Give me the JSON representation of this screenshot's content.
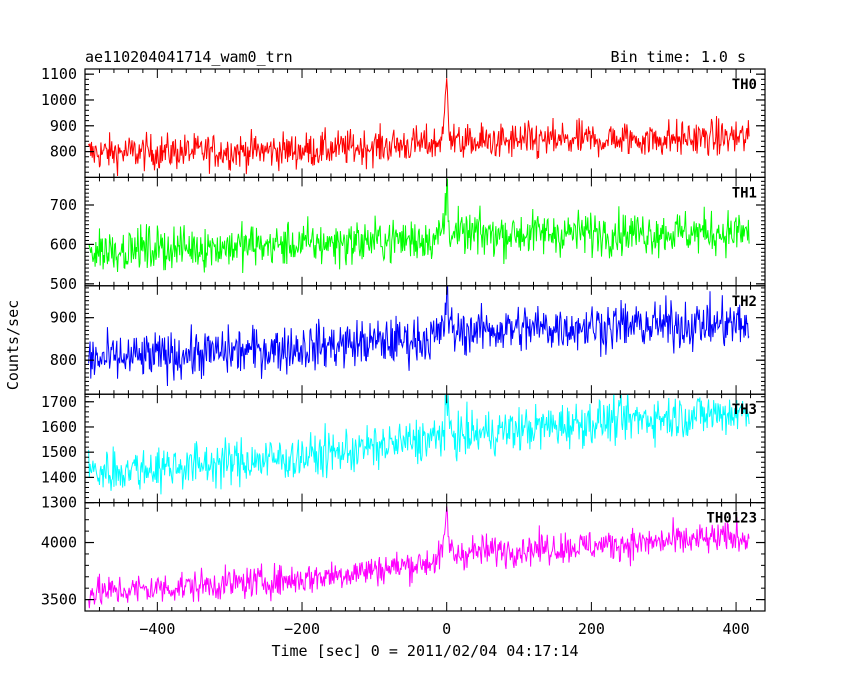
{
  "chart_data": {
    "type": "line",
    "title": "ae110204041714_wam0_trn",
    "subtitle": "Bin time: 1.0 s",
    "xlabel": "Time [sec] 0 = 2011/02/04 04:17:14",
    "ylabel": "Counts/sec",
    "xlim": [
      -500,
      440
    ],
    "x_ticks": [
      "−400",
      "−200",
      "0",
      "200",
      "400"
    ],
    "x_tick_values": [
      -400,
      -200,
      0,
      200,
      400
    ],
    "x_range": [
      -495,
      418
    ],
    "grid": false,
    "panels": [
      {
        "name": "TH0",
        "color": "#ff0000",
        "ylim": [
          700,
          1120
        ],
        "yticks": [
          800,
          900,
          1000,
          1100
        ],
        "ytick_labels": [
          "800",
          "900",
          "1000",
          "1100"
        ],
        "trend": [
          [
            -495,
            795
          ],
          [
            -200,
            805
          ],
          [
            -30,
            830
          ],
          [
            30,
            835
          ],
          [
            200,
            845
          ],
          [
            418,
            855
          ]
        ],
        "noise": 35,
        "peak": 1110
      },
      {
        "name": "TH1",
        "color": "#00ff00",
        "ylim": [
          495,
          770
        ],
        "yticks": [
          500,
          600,
          700
        ],
        "ytick_labels": [
          "500",
          "600",
          "700"
        ],
        "trend": [
          [
            -495,
            585
          ],
          [
            -200,
            600
          ],
          [
            -30,
            615
          ],
          [
            30,
            625
          ],
          [
            200,
            630
          ],
          [
            418,
            630
          ]
        ],
        "noise": 28,
        "peak": 765
      },
      {
        "name": "TH2",
        "color": "#0000ff",
        "ylim": [
          720,
          975
        ],
        "yticks": [
          800,
          900
        ],
        "ytick_labels": [
          "800",
          "900"
        ],
        "trend": [
          [
            -495,
            800
          ],
          [
            -200,
            830
          ],
          [
            -30,
            850
          ],
          [
            30,
            870
          ],
          [
            200,
            880
          ],
          [
            418,
            885
          ]
        ],
        "noise": 28,
        "peak": 970
      },
      {
        "name": "TH3",
        "color": "#00ffff",
        "ylim": [
          1300,
          1730
        ],
        "yticks": [
          1300,
          1400,
          1500,
          1600,
          1700
        ],
        "ytick_labels": [
          "1300",
          "1400",
          "1500",
          "1600",
          "1700"
        ],
        "trend": [
          [
            -495,
            1420
          ],
          [
            -200,
            1480
          ],
          [
            0,
            1560
          ],
          [
            200,
            1620
          ],
          [
            418,
            1660
          ]
        ],
        "noise": 45,
        "peak": 1700
      },
      {
        "name": "TH0123",
        "color": "#ff00ff",
        "ylim": [
          3400,
          4350
        ],
        "yticks": [
          3500,
          4000
        ],
        "ytick_labels": [
          "3500",
          "4000"
        ],
        "trend": [
          [
            -495,
            3560
          ],
          [
            -200,
            3680
          ],
          [
            -30,
            3820
          ],
          [
            30,
            3920
          ],
          [
            200,
            3970
          ],
          [
            418,
            4050
          ]
        ],
        "noise": 70,
        "peak": 4330
      }
    ]
  }
}
